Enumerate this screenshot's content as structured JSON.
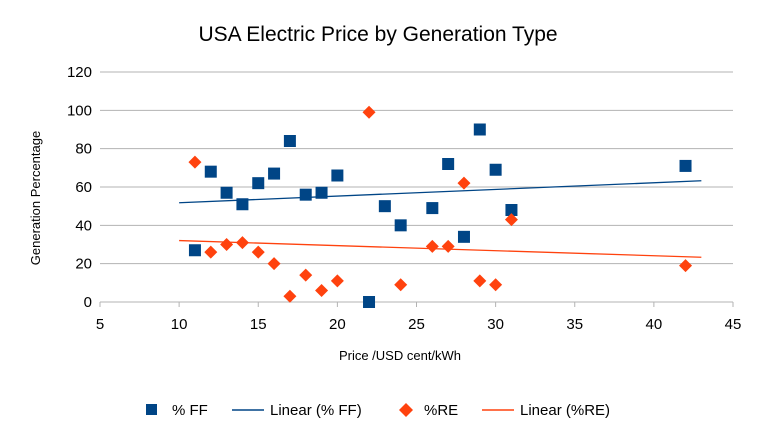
{
  "chart_data": {
    "type": "scatter",
    "title": "USA Electric Price by Generation Type",
    "xlabel": "Price /USD cent/kWh",
    "ylabel": "Generation Percentage",
    "xlim": [
      5,
      45
    ],
    "ylim": [
      0,
      120
    ],
    "xticks": [
      5,
      10,
      15,
      20,
      25,
      30,
      35,
      40,
      45
    ],
    "yticks": [
      0,
      20,
      40,
      60,
      80,
      100,
      120
    ],
    "grid": true,
    "legend_position": "bottom",
    "trend_x_range": [
      10,
      43
    ],
    "series": [
      {
        "name": "% FF",
        "trend_name": "Linear (% FF)",
        "color": "#004586",
        "marker": "square",
        "points": [
          [
            11,
            27
          ],
          [
            12,
            68
          ],
          [
            13,
            57
          ],
          [
            14,
            51
          ],
          [
            15,
            62
          ],
          [
            16,
            67
          ],
          [
            17,
            84
          ],
          [
            18,
            56
          ],
          [
            19,
            57
          ],
          [
            20,
            66
          ],
          [
            22,
            0
          ],
          [
            23,
            50
          ],
          [
            24,
            40
          ],
          [
            26,
            49
          ],
          [
            27,
            72
          ],
          [
            28,
            34
          ],
          [
            29,
            90
          ],
          [
            30,
            69
          ],
          [
            31,
            48
          ],
          [
            42,
            71
          ]
        ]
      },
      {
        "name": "%RE",
        "trend_name": "Linear (%RE)",
        "color": "#ff420e",
        "marker": "diamond",
        "points": [
          [
            11,
            73
          ],
          [
            12,
            26
          ],
          [
            13,
            30
          ],
          [
            14,
            31
          ],
          [
            15,
            26
          ],
          [
            16,
            20
          ],
          [
            17,
            3
          ],
          [
            18,
            14
          ],
          [
            19,
            6
          ],
          [
            20,
            11
          ],
          [
            22,
            99
          ],
          [
            24,
            9
          ],
          [
            26,
            29
          ],
          [
            27,
            29
          ],
          [
            28,
            62
          ],
          [
            29,
            11
          ],
          [
            30,
            9
          ],
          [
            31,
            43
          ],
          [
            42,
            19
          ]
        ]
      }
    ]
  }
}
